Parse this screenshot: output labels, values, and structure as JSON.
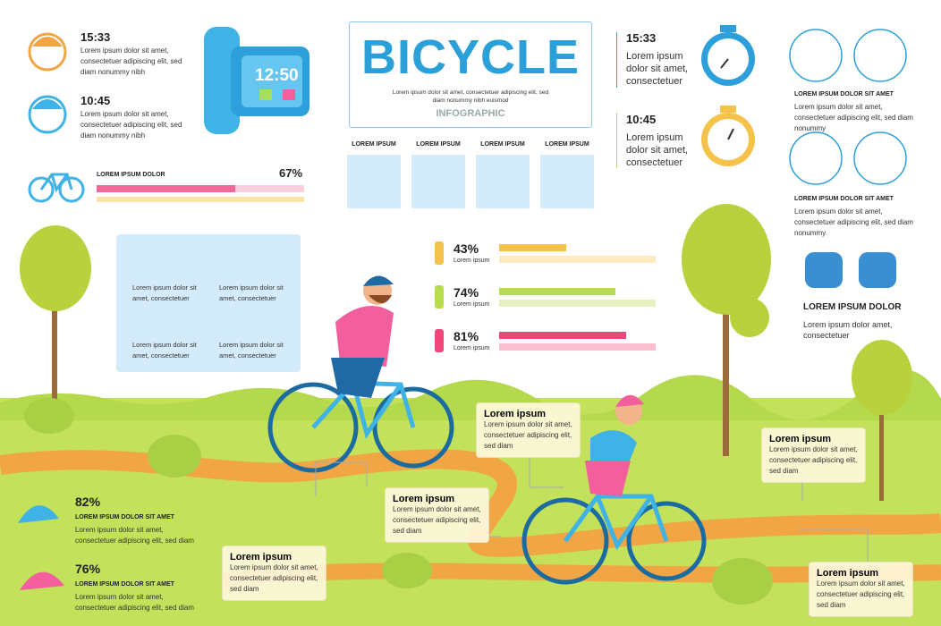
{
  "timers": [
    {
      "time": "15:33",
      "text": "Lorem ipsum dolor sit amet, consectetuer adipiscing elit, sed diam nonummy nibh"
    },
    {
      "time": "10:45",
      "text": "Lorem ipsum dolor sit amet, consectetuer adipiscing elit, sed diam nonummy nibh"
    }
  ],
  "watch": "12:50",
  "progress": {
    "label": "LOREM IPSUM DOLOR",
    "percent": {
      "value": 67,
      "label": "67%"
    }
  },
  "header": {
    "title": "BICYCLE",
    "text": "Lorem ipsum dolor sit amet, consectetuer adipiscing elit, sed diam nonummy nibh euismod",
    "subtitle": "INFOGRAPHIC"
  },
  "icons": [
    "LOREM IPSUM",
    "LOREM IPSUM",
    "LOREM IPSUM",
    "LOREM IPSUM"
  ],
  "stopwatches": [
    {
      "time": "15:33",
      "text": "Lorem ipsum dolor sit amet, consectetuer"
    },
    {
      "time": "10:45",
      "text": "Lorem ipsum dolor sit amet, consectetuer"
    }
  ],
  "right_icons": [
    {
      "title": "LOREM IPSUM DOLOR SIT AMET",
      "text": "Lorem ipsum dolor sit amet, consectetuer adipiscing elit, sed diam nonummy"
    },
    {
      "title": "LOREM IPSUM DOLOR SIT AMET",
      "text": "Lorem ipsum dolor sit amet, consectetuer adipiscing elit, sed diam nonummy"
    }
  ],
  "gloves": {
    "title": "LOREM IPSUM DOLOR",
    "text": "Lorem ipsum dolor amet, consectetuer"
  },
  "equipment": [
    "Lorem ipsum dolor sit amet, consectetuer",
    "Lorem ipsum dolor sit amet, consectetuer",
    "Lorem ipsum dolor sit amet, consectetuer",
    "Lorem ipsum dolor sit amet, consectetuer"
  ],
  "stats": [
    {
      "percent": {
        "value": 43,
        "label": "43%"
      },
      "text": "Lorem ipsum",
      "color": "#f5c24c"
    },
    {
      "percent": {
        "value": 74,
        "label": "74%"
      },
      "text": "Lorem ipsum",
      "color": "#b8dc4a"
    },
    {
      "percent": {
        "value": 81,
        "label": "81%"
      },
      "text": "Lorem ipsum",
      "color": "#f0467a"
    }
  ],
  "helmets": [
    {
      "percent": {
        "value": 82,
        "label": "82%"
      },
      "title": "LOREM IPSUM DOLOR SIT AMET",
      "text": "Lorem ipsum dolor sit amet, consectetuer adipiscing elit, sed diam"
    },
    {
      "percent": {
        "value": 76,
        "label": "76%"
      },
      "title": "LOREM IPSUM DOLOR SIT AMET",
      "text": "Lorem ipsum dolor sit amet, consectetuer adipiscing elit, sed diam"
    }
  ],
  "callouts": [
    {
      "title": "Lorem ipsum",
      "text": "Lorem ipsum dolor sit amet, consectetuer adipiscing elit, sed diam"
    },
    {
      "title": "Lorem ipsum",
      "text": "Lorem ipsum dolor sit amet, consectetuer adipiscing elit, sed diam"
    },
    {
      "title": "Lorem ipsum",
      "text": "Lorem ipsum dolor sit amet, consectetuer adipiscing elit, sed diam"
    },
    {
      "title": "Lorem ipsum",
      "text": "Lorem ipsum dolor sit amet, consectetuer adipiscing elit, sed diam"
    },
    {
      "title": "Lorem ipsum",
      "text": "Lorem ipsum dolor sit amet, consectetuer adipiscing elit, sed diam"
    }
  ]
}
